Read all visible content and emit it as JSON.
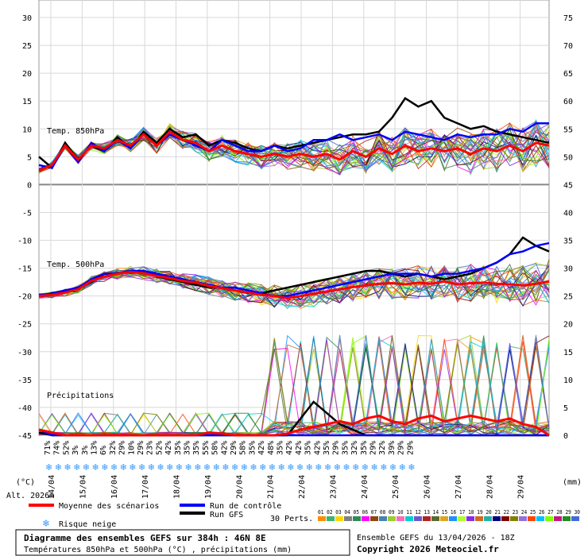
{
  "chart_data": {
    "type": "line",
    "title": "Diagramme des ensembles GEFS sur 384h : 46N 8E",
    "subtitle": "Températures 850hPa et 500hPa (°C) , précipitations (mm)",
    "left_axis": {
      "label": "(°C)",
      "ticks": [
        30,
        25,
        20,
        15,
        10,
        5,
        0,
        -5,
        -10,
        -15,
        -20,
        -25,
        -30,
        -35,
        -40,
        -45
      ],
      "range": [
        -45,
        30
      ]
    },
    "right_axis": {
      "label": "(mm)",
      "ticks": [
        75,
        70,
        65,
        60,
        55,
        50,
        45,
        40,
        35,
        30,
        25,
        20,
        15,
        10,
        5,
        0
      ],
      "range": [
        0,
        75
      ]
    },
    "x_dates": [
      "14/04",
      "15/04",
      "16/04",
      "17/04",
      "18/04",
      "19/04",
      "20/04",
      "21/04",
      "22/04",
      "23/04",
      "24/04",
      "25/04",
      "26/04",
      "27/04",
      "28/04",
      "29/04"
    ],
    "alt_label": "Alt. 2026m",
    "annotations": {
      "t850": "Temp. 850hPa",
      "t500": "Temp. 500hPa",
      "precip": "Précipitations"
    },
    "series": [
      {
        "name": "Moyenne des scénarios",
        "color": "#ff0000",
        "t850": [
          2.5,
          3.5,
          7,
          4.5,
          7,
          6.5,
          8,
          7,
          9,
          7,
          9.5,
          8,
          7.5,
          6,
          7,
          6,
          5.5,
          5,
          5.5,
          5,
          5.5,
          5,
          5.5,
          4.5,
          6,
          5,
          6.5,
          5.5,
          7,
          6,
          6.5,
          6,
          6.5,
          5.5,
          6.5,
          6,
          7,
          6,
          7.5,
          7
        ],
        "t500": [
          -20,
          -19.8,
          -19.4,
          -18.8,
          -17.3,
          -16.5,
          -16,
          -15.7,
          -15.9,
          -16.4,
          -16.8,
          -17.3,
          -17.6,
          -18.2,
          -18.6,
          -19,
          -19.4,
          -19.8,
          -20,
          -20.4,
          -20,
          -19.6,
          -19.2,
          -18.8,
          -18.4,
          -18.1,
          -17.8,
          -17.7,
          -17.9,
          -17.6,
          -17.8,
          -17.4,
          -17.9,
          -17.7,
          -17.6,
          -17.8,
          -17.9,
          -18.1,
          -17.8,
          -17.4
        ],
        "precip": [
          1,
          0.5,
          0,
          0,
          0,
          0,
          0,
          0,
          0,
          0,
          0,
          0,
          0,
          0.5,
          0.3,
          0,
          0,
          0,
          0,
          0.3,
          1,
          1.5,
          2,
          2.5,
          2,
          3,
          3.5,
          2.5,
          2,
          3,
          3.5,
          2.5,
          3,
          3.5,
          3,
          2.5,
          3,
          2,
          1.5,
          0
        ]
      },
      {
        "name": "Run de contrôle",
        "color": "#0000ff",
        "t850": [
          3.5,
          3,
          7,
          4,
          7.5,
          6,
          8,
          6.5,
          9,
          7,
          9,
          8,
          7,
          6,
          8,
          7,
          6,
          6,
          7,
          6,
          6.5,
          8,
          8,
          9,
          8,
          8.5,
          9,
          8,
          9.5,
          9,
          8.5,
          8,
          9,
          8.5,
          9,
          9,
          10,
          9.5,
          11,
          11
        ],
        "t500": [
          -19.8,
          -19.6,
          -19,
          -18.5,
          -17,
          -16,
          -16,
          -15.5,
          -15.5,
          -16,
          -16.5,
          -17,
          -17.5,
          -18,
          -18.5,
          -18.5,
          -19,
          -19.5,
          -20,
          -20,
          -19.5,
          -19,
          -18.5,
          -18,
          -17.5,
          -17,
          -16.5,
          -16,
          -16,
          -16,
          -16.5,
          -16,
          -16,
          -15.5,
          -15,
          -14,
          -12.5,
          -12,
          -11,
          -10.5
        ],
        "precip": [
          1,
          0,
          0,
          0,
          0,
          0,
          0,
          0,
          0,
          0,
          0,
          0,
          0,
          0,
          0,
          0,
          0,
          0,
          0,
          0,
          0,
          0,
          0,
          0,
          0,
          0,
          0,
          0,
          0,
          0,
          0,
          0,
          0,
          0,
          0,
          0,
          0,
          0,
          0,
          0
        ]
      },
      {
        "name": "Run GFS",
        "color": "#000000",
        "t850": [
          5,
          3,
          7.5,
          4.5,
          7,
          6,
          8.5,
          6.5,
          9.5,
          7.5,
          10,
          8.5,
          9,
          7,
          8,
          7.5,
          6.5,
          6,
          7,
          6.5,
          7,
          7.5,
          8,
          8.5,
          9,
          9,
          9.5,
          12,
          15.5,
          14,
          15,
          12,
          11,
          10,
          10.5,
          9.5,
          9,
          8.5,
          8,
          7.5
        ],
        "t500": [
          -20,
          -19.5,
          -19,
          -18.5,
          -17.5,
          -16,
          -16,
          -15.5,
          -15.5,
          -16.5,
          -17,
          -17.5,
          -18,
          -18.5,
          -18.5,
          -19,
          -19.5,
          -19.5,
          -19,
          -18.5,
          -18,
          -17.5,
          -17,
          -16.5,
          -16,
          -15.5,
          -15.5,
          -16,
          -16.5,
          -16,
          -16.5,
          -17,
          -16.5,
          -16,
          -15,
          -14,
          -12.5,
          -9.5,
          -11,
          -12
        ],
        "precip": [
          0.5,
          0,
          0,
          0,
          0,
          0,
          0,
          0,
          0,
          0,
          0,
          0,
          0,
          0,
          0,
          0,
          0,
          0,
          0,
          0,
          3,
          6,
          4,
          2,
          1,
          0,
          0,
          0,
          0,
          0,
          0,
          0,
          0,
          0,
          0,
          0,
          0,
          0,
          0,
          0
        ]
      }
    ],
    "snow_risk_percent": [
      "71%",
      "74%",
      "52%",
      "3%",
      "3%",
      "13%",
      "6%",
      "32%",
      "29%",
      "10%",
      "29%",
      "23%",
      "52%",
      "42%",
      "35%",
      "35%",
      "35%",
      "55%",
      "58%",
      "42%",
      "29%",
      "58%",
      "35%",
      "42%",
      "48%",
      "35%",
      "42%",
      "42%",
      "35%",
      "42%",
      "35%",
      "29%",
      "35%",
      "32%",
      "35%",
      "29%",
      "32%",
      "39%",
      "29%",
      "29%"
    ]
  },
  "legend": {
    "items": [
      {
        "label": "Moyenne des scénarios",
        "color": "#ff0000"
      },
      {
        "label": "Run de contrôle",
        "color": "#0000ff"
      },
      {
        "label": "Run GFS",
        "color": "#000000"
      }
    ],
    "snow_label": "Risque neige",
    "perts_label": "30 Perts.",
    "perts_numbers": "01 02 03 04 05 06 07 08 09 10 11 12 13 14 15 16 17 18 19 20 21 22 23 24 25 26 27 28 29 30",
    "perts_colors": [
      "#ff8c00",
      "#3cb371",
      "#ffd700",
      "#808080",
      "#2e8b57",
      "#ff00ff",
      "#8b4513",
      "#4682b4",
      "#9acd32",
      "#ff69b4",
      "#00ced1",
      "#6a5acd",
      "#b22222",
      "#556b2f",
      "#daa520",
      "#1e90ff",
      "#adff2f",
      "#8a2be2",
      "#d2691e",
      "#20b2aa",
      "#000080",
      "#800000",
      "#808000",
      "#9370db",
      "#ff4500",
      "#00bfff",
      "#7fff00",
      "#c71585",
      "#228b22",
      "#4169e1"
    ]
  },
  "footer": {
    "title": "Diagramme des ensembles GEFS sur 384h : 46N 8E",
    "subtitle": "Températures 850hPa et 500hPa (°C) , précipitations (mm)",
    "run_info": "Ensemble GEFS du 13/04/2026 - 18Z",
    "copyright": "Copyright 2026 Meteociel.fr"
  }
}
